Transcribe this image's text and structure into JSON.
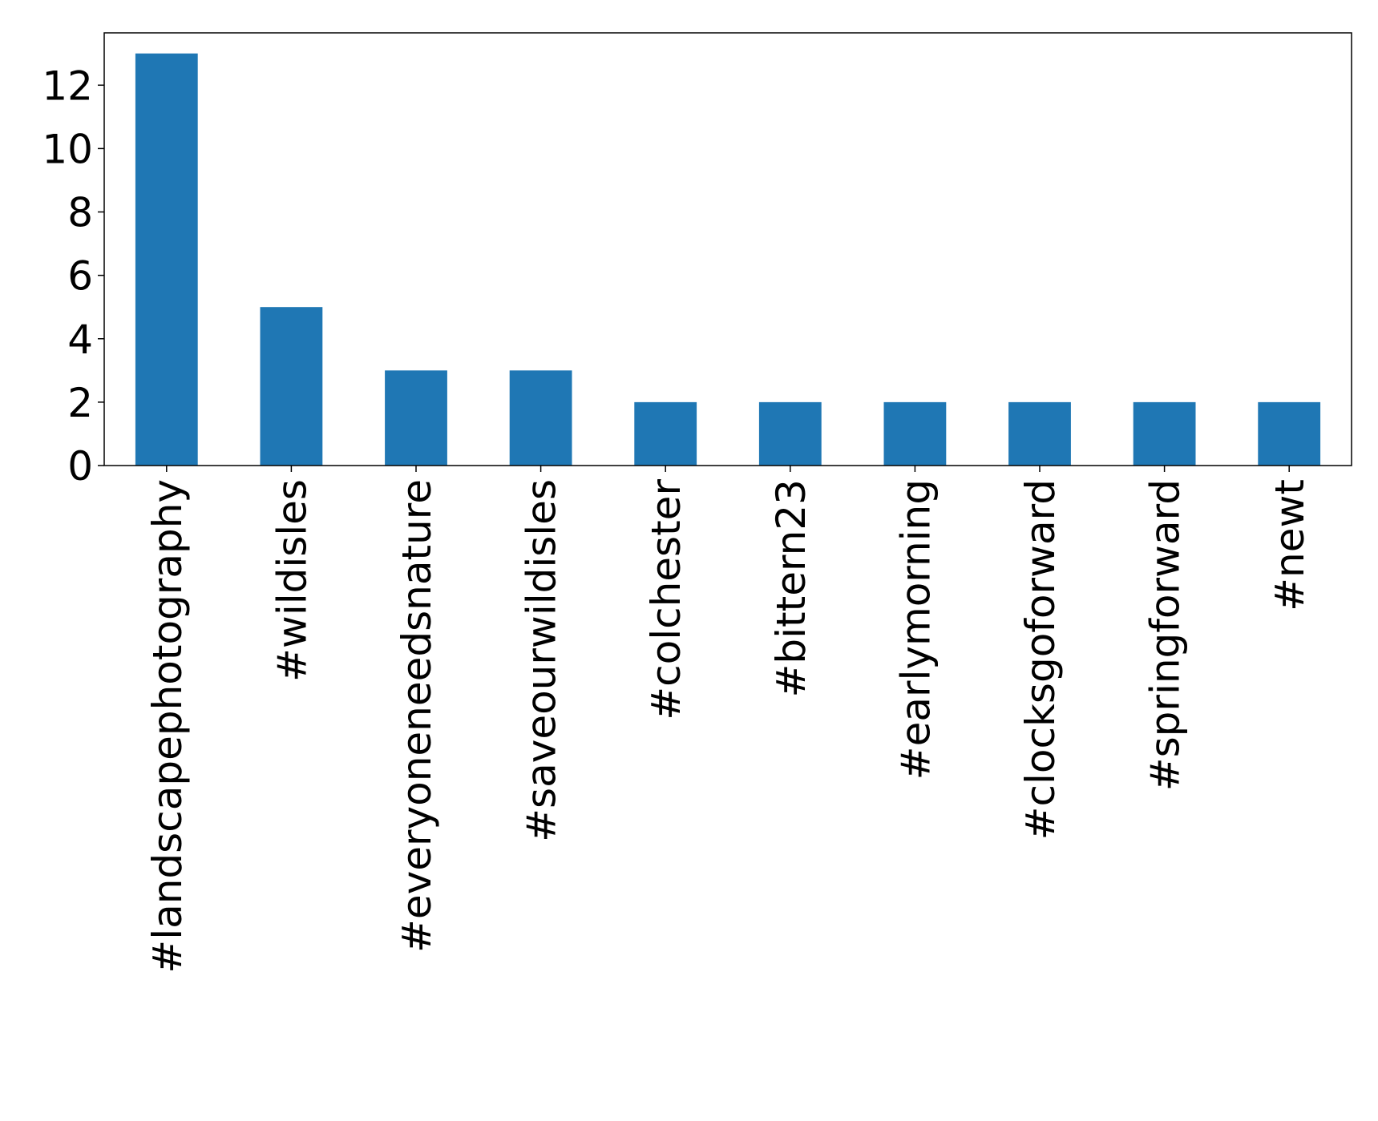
{
  "chart_data": {
    "type": "bar",
    "categories": [
      "#landscapephotography",
      "#wildisles",
      "#everyoneneedsnature",
      "#saveourwildisles",
      "#colchester",
      "#bittern23",
      "#earlymorning",
      "#clocksgoforward",
      "#springforward",
      "#newt"
    ],
    "values": [
      13,
      5,
      3,
      3,
      2,
      2,
      2,
      2,
      2,
      2
    ],
    "title": "",
    "xlabel": "",
    "ylabel": "",
    "ylim": [
      0,
      13.65
    ],
    "yticks": [
      0,
      2,
      4,
      6,
      8,
      10,
      12
    ],
    "grid": false,
    "legend": "none",
    "bar_color": "#1f77b4"
  }
}
